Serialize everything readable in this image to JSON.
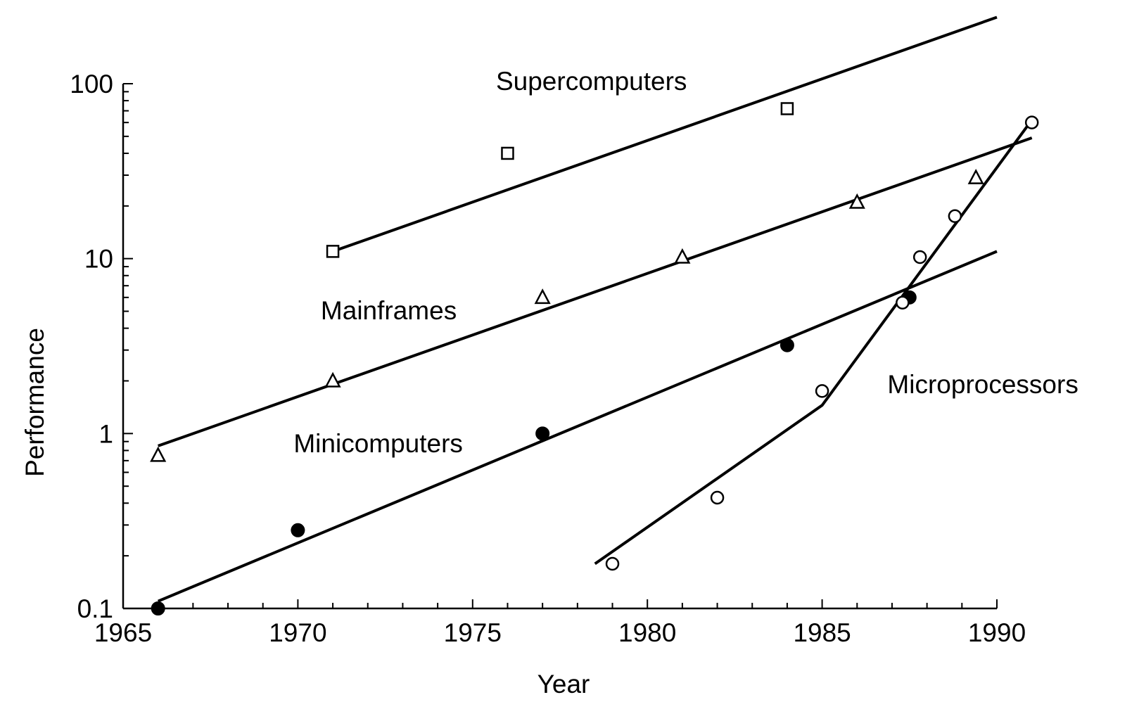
{
  "chart_data": {
    "type": "scatter",
    "title": "",
    "xlabel": "Year",
    "ylabel": "Performance",
    "xlim": [
      1965,
      1990
    ],
    "ylim": [
      0.1,
      100
    ],
    "yscale": "log",
    "x_ticks": [
      1965,
      1970,
      1975,
      1980,
      1985,
      1990
    ],
    "y_ticks": [
      0.1,
      1,
      10,
      100
    ],
    "y_tick_labels": [
      "0.1",
      "1",
      "10",
      "100"
    ],
    "grid": false,
    "legend": "none",
    "series": [
      {
        "name": "Supercomputers",
        "marker": "square-open",
        "points": [
          {
            "x": 1971,
            "y": 11
          },
          {
            "x": 1976,
            "y": 40
          },
          {
            "x": 1984,
            "y": 72
          }
        ],
        "trend": [
          {
            "x": 1971,
            "y": 11
          },
          {
            "x": 1990,
            "y": 240
          }
        ]
      },
      {
        "name": "Mainframes",
        "marker": "triangle-open",
        "points": [
          {
            "x": 1966,
            "y": 0.75
          },
          {
            "x": 1971,
            "y": 2
          },
          {
            "x": 1977,
            "y": 6
          },
          {
            "x": 1981,
            "y": 10.2
          },
          {
            "x": 1986,
            "y": 21
          },
          {
            "x": 1989.4,
            "y": 29
          }
        ],
        "trend": [
          {
            "x": 1966,
            "y": 0.85
          },
          {
            "x": 1991,
            "y": 49
          }
        ]
      },
      {
        "name": "Minicomputers",
        "marker": "circle-filled",
        "points": [
          {
            "x": 1966,
            "y": 0.1
          },
          {
            "x": 1970,
            "y": 0.28
          },
          {
            "x": 1977,
            "y": 1
          },
          {
            "x": 1984,
            "y": 3.2
          },
          {
            "x": 1987.5,
            "y": 6
          }
        ],
        "trend": [
          {
            "x": 1966,
            "y": 0.11
          },
          {
            "x": 1990,
            "y": 11
          }
        ]
      },
      {
        "name": "Microprocessors",
        "marker": "circle-open",
        "points": [
          {
            "x": 1979,
            "y": 0.18
          },
          {
            "x": 1982,
            "y": 0.43
          },
          {
            "x": 1985,
            "y": 1.75
          },
          {
            "x": 1987.3,
            "y": 5.6
          },
          {
            "x": 1987.8,
            "y": 10.2
          },
          {
            "x": 1988.8,
            "y": 17.5
          },
          {
            "x": 1991,
            "y": 60
          }
        ],
        "trend": [
          {
            "x": 1978.5,
            "y": 0.18
          },
          {
            "x": 1985,
            "y": 1.45
          },
          {
            "x": 1991,
            "y": 62
          }
        ]
      }
    ],
    "labels": [
      {
        "text": "Supercomputers",
        "x": 1978.4,
        "y": 92
      },
      {
        "text": "Mainframes",
        "x": 1972.6,
        "y": 4.5
      },
      {
        "text": "Minicomputers",
        "x": 1972.3,
        "y": 0.78
      },
      {
        "text": "Microprocessors",
        "x": 1989.6,
        "y": 1.7
      }
    ]
  }
}
